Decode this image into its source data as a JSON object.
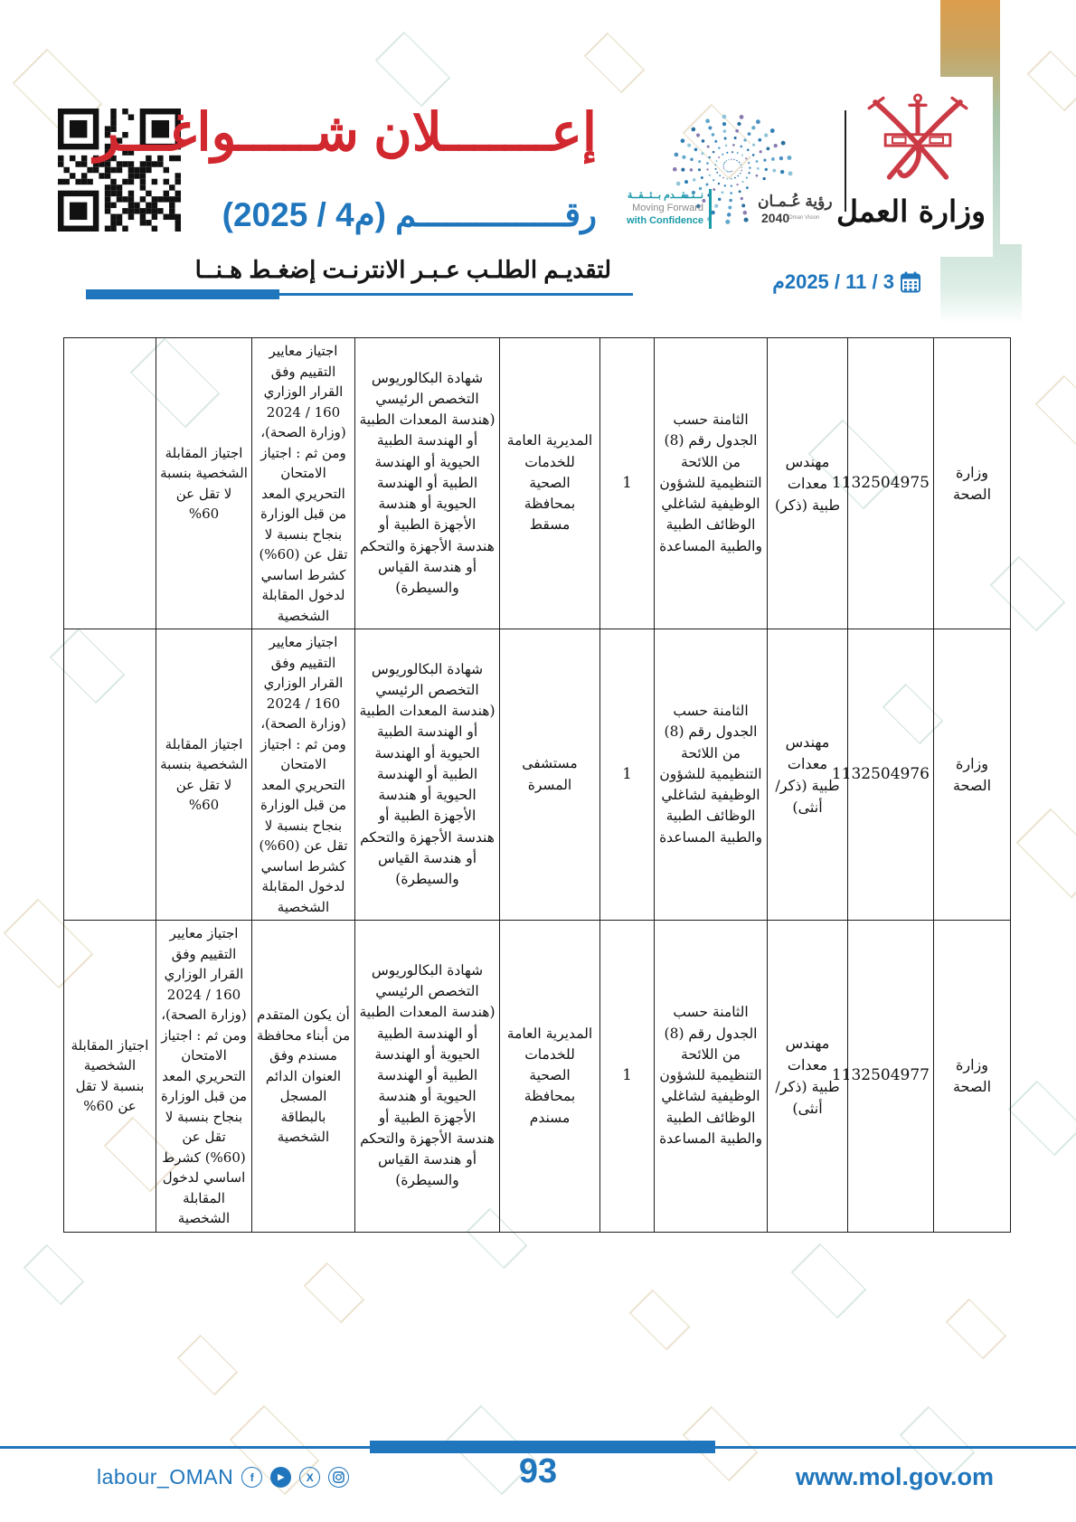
{
  "colors": {
    "accent_red": "#d1272e",
    "accent_blue": "#2076bc",
    "teal": "#1b9aa8",
    "emblem_red": "#cb3a44",
    "table_border": "#1c1c1c"
  },
  "header": {
    "title_red": "إعـــــــلان شـــــواغـــر",
    "title_blue": "رقـــــــــــــــم (م4 / 2025)",
    "apply_text": "لتقديـم الطلـب عـبـر الانترنـت إضغـط هـنــا",
    "date": "3 / 11 / 2025م",
    "vision_logo": {
      "tagline_ar": "نــتــقــدم بــثــقــة",
      "tagline_en1": "Moving Forward",
      "tagline_en2": "with Confidence",
      "name_ar": "رؤية عُـمـان",
      "year": "2040",
      "sub_en": "Oman Vision"
    },
    "ministry_logo": {
      "name_ar": "وزارة العمل"
    }
  },
  "table": {
    "rows": [
      {
        "ministry": "وزارة الصحة",
        "vacancy_no": "1132504975",
        "job_title": "مهندس معدات طبية (ذكر)",
        "grade": "الثامنة حسب الجدول رقم (8) من اللائحة التنظيمية للشؤون الوظيفية لشاغلي الوظائف الطبية والطبية المساعدة",
        "count": "1",
        "workplace": "المديرية العامة للخدمات الصحية بمحافظة مسقط",
        "qualification": "شهادة البكالوريوس التخصص الرئيسي (هندسة المعدات الطبية أو الهندسة الطبية الحيوية أو الهندسة الطبية أو الهندسة الحيوية أو هندسة الأجهزة الطبية أو هندسة الأجهزة والتحكم أو هندسة القياس والسيطرة)",
        "cond1": "اجتياز معايير التقييم وفق القرار الوزاري 160 / 2024 (وزارة الصحة)، ومن ثم : اجتياز الامتحان التحريري المعد من قبل الوزارة بنجاح بنسبة لا تقل عن (60%) كشرط اساسي لدخول المقابلة الشخصية",
        "cond2": "اجتياز المقابلة الشخصية بنسبة لا تقل عن 60%",
        "cond3": ""
      },
      {
        "ministry": "وزارة الصحة",
        "vacancy_no": "1132504976",
        "job_title": "مهندس معدات طبية (ذكر/أنثى)",
        "grade": "الثامنة حسب الجدول رقم (8) من اللائحة التنظيمية للشؤون الوظيفية لشاغلي الوظائف الطبية والطبية المساعدة",
        "count": "1",
        "workplace": "مستشفى المسرة",
        "qualification": "شهادة البكالوريوس التخصص الرئيسي (هندسة المعدات الطبية أو الهندسة الطبية الحيوية أو الهندسة الطبية أو الهندسة الحيوية أو هندسة الأجهزة الطبية أو هندسة الأجهزة والتحكم أو هندسة القياس والسيطرة)",
        "cond1": "اجتياز معايير التقييم وفق القرار الوزاري 160 / 2024 (وزارة الصحة)، ومن ثم : اجتياز الامتحان التحريري المعد من قبل الوزارة بنجاح بنسبة لا تقل عن (60%) كشرط اساسي لدخول المقابلة الشخصية",
        "cond2": "اجتياز المقابلة الشخصية بنسبة لا تقل عن 60%",
        "cond3": ""
      },
      {
        "ministry": "وزارة الصحة",
        "vacancy_no": "1132504977",
        "job_title": "مهندس معدات طبية (ذكر/أنثى)",
        "grade": "الثامنة حسب الجدول رقم (8) من اللائحة التنظيمية للشؤون الوظيفية لشاغلي الوظائف الطبية والطبية المساعدة",
        "count": "1",
        "workplace": "المديرية العامة للخدمات الصحية بمحافظة مسندم",
        "qualification": "شهادة البكالوريوس التخصص الرئيسي (هندسة المعدات الطبية أو الهندسة الطبية الحيوية أو الهندسة الطبية أو الهندسة الحيوية أو هندسة الأجهزة الطبية أو هندسة الأجهزة والتحكم أو هندسة القياس والسيطرة)",
        "cond1": "أن يكون المتقدم من أبناء محافظة مسندم وفق العنوان الدائم المسجل بالبطاقة الشخصية",
        "cond2": "اجتياز معايير التقييم وفق القرار الوزاري 160 / 2024 (وزارة الصحة)، ومن ثم : اجتياز الامتحان التحريري المعد من قبل الوزارة بنجاح بنسبة لا تقل عن (60%) كشرط اساسي لدخول المقابلة الشخصية",
        "cond3": "اجتياز المقابلة الشخصية بنسبة لا تقل عن 60%"
      }
    ]
  },
  "footer": {
    "social_handle": "labour_OMAN",
    "facebook_glyph": "f",
    "youtube_glyph": "▶",
    "x_glyph": "X",
    "page_number": "93",
    "website": "www.mol.gov.om"
  }
}
